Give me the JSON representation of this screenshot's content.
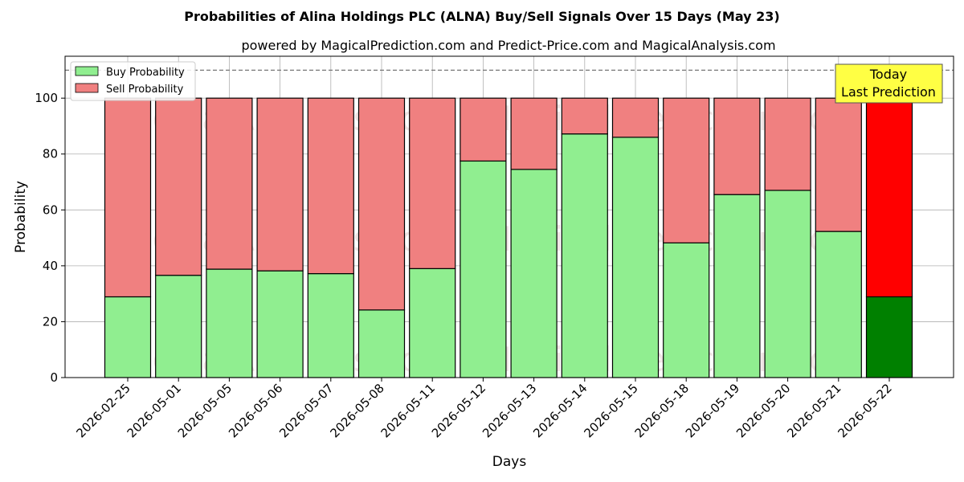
{
  "chart_data": {
    "type": "bar",
    "stacked": true,
    "title": "Probabilities of Alina Holdings PLC (ALNA) Buy/Sell Signals Over 15 Days (May 23)",
    "subtitle": "powered by MagicalPrediction.com and Predict-Price.com and MagicalAnalysis.com",
    "xlabel": "Days",
    "ylabel": "Probability",
    "ylim": [
      0,
      115
    ],
    "yticks": [
      "0",
      "20",
      "40",
      "60",
      "80",
      "100"
    ],
    "grid": true,
    "legend_position": "top-left",
    "reference_line": 110,
    "categories": [
      "2026-02-25",
      "2026-05-01",
      "2026-05-05",
      "2026-05-06",
      "2026-05-07",
      "2026-05-08",
      "2026-05-11",
      "2026-05-12",
      "2026-05-13",
      "2026-05-14",
      "2026-05-15",
      "2026-05-18",
      "2026-05-19",
      "2026-05-20",
      "2026-05-21",
      "2026-05-22"
    ],
    "series": [
      {
        "name": "Buy Probability",
        "color": "#90ee90",
        "highlight_color": "#008000",
        "values": [
          28.9,
          36.6,
          38.8,
          38.2,
          37.2,
          24.2,
          39.0,
          77.5,
          74.5,
          87.2,
          86.0,
          48.2,
          65.5,
          67.0,
          52.3,
          28.9
        ]
      },
      {
        "name": "Sell Probability",
        "color": "#f08080",
        "highlight_color": "#ff0000",
        "values": [
          71.1,
          63.4,
          61.2,
          61.8,
          62.8,
          75.8,
          61.0,
          22.5,
          25.5,
          12.8,
          14.0,
          51.8,
          34.5,
          33.0,
          47.7,
          71.1
        ]
      }
    ],
    "annotation": {
      "lines": [
        "Today",
        "Last Prediction"
      ],
      "color": "#ffff44"
    },
    "watermarks": [
      "MagicalAnalysis.com",
      "MagicalPrediction.com"
    ]
  }
}
